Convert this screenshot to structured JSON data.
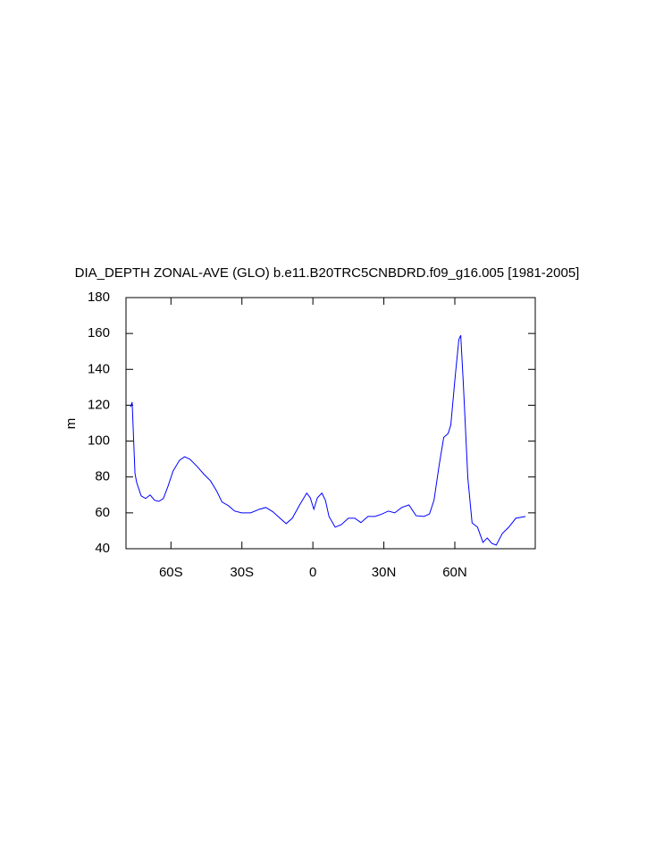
{
  "chart_data": {
    "type": "line",
    "title": "DIA_DEPTH ZONAL-AVE (GLO) b.e11.B20TRC5CNBDRD.f09_g16.005 [1981-2005]",
    "y_label": "m",
    "x": [
      -77.1,
      -76.4,
      -75.2,
      -74.5,
      -72.6,
      -70.7,
      -68.8,
      -66.9,
      -65.1,
      -63.2,
      -61.3,
      -59.1,
      -56.4,
      -54.2,
      -51.9,
      -48.9,
      -45.9,
      -43.3,
      -40.6,
      -38.4,
      -35.7,
      -33.1,
      -30.1,
      -26.3,
      -22.6,
      -19.9,
      -16.9,
      -13.9,
      -11.3,
      -8.7,
      -5.6,
      -2.6,
      -1.1,
      0.4,
      1.9,
      3.8,
      5.3,
      6.8,
      9.4,
      12.0,
      15.0,
      17.7,
      20.3,
      23.3,
      26.3,
      29.3,
      31.9,
      34.6,
      37.6,
      40.6,
      43.6,
      47.0,
      49.3,
      51.2,
      53.4,
      55.3,
      57.2,
      58.3,
      60.2,
      61.7,
      62.5,
      63.6,
      65.5,
      67.3,
      69.6,
      71.9,
      73.7,
      75.6,
      77.5,
      80.1,
      82.8,
      85.8,
      89.9
    ],
    "series": [
      {
        "color": "#0000ff",
        "values": [
          119,
          121.7,
          82,
          77,
          69.5,
          68,
          70,
          67,
          66.4,
          68,
          74.6,
          83.3,
          89.3,
          91.3,
          89.8,
          85.8,
          81.3,
          77.9,
          72,
          66,
          64,
          61,
          60,
          60,
          62,
          63,
          60.6,
          57,
          54,
          57,
          64.4,
          71,
          68.4,
          62,
          68.4,
          71,
          67,
          58,
          52,
          53.4,
          57,
          57,
          54.6,
          58,
          58,
          59.4,
          61,
          60,
          63,
          64.4,
          58.4,
          58,
          59.4,
          67,
          86.8,
          102,
          104.3,
          109,
          136.6,
          156.6,
          159,
          132,
          79.4,
          54.4,
          52,
          43.5,
          46,
          43,
          42,
          48.5,
          52,
          57,
          58
        ]
      }
    ],
    "xlim": [
      -79,
      94
    ],
    "xticks": [
      {
        "value": -60,
        "label": "60S"
      },
      {
        "value": -30,
        "label": "30S"
      },
      0,
      {
        "value": 30,
        "label": "30N"
      },
      {
        "value": 60,
        "label": "60N"
      }
    ],
    "ylim": [
      40,
      180
    ],
    "yticks": [
      40,
      60,
      80,
      100,
      120,
      140,
      160,
      180
    ]
  }
}
